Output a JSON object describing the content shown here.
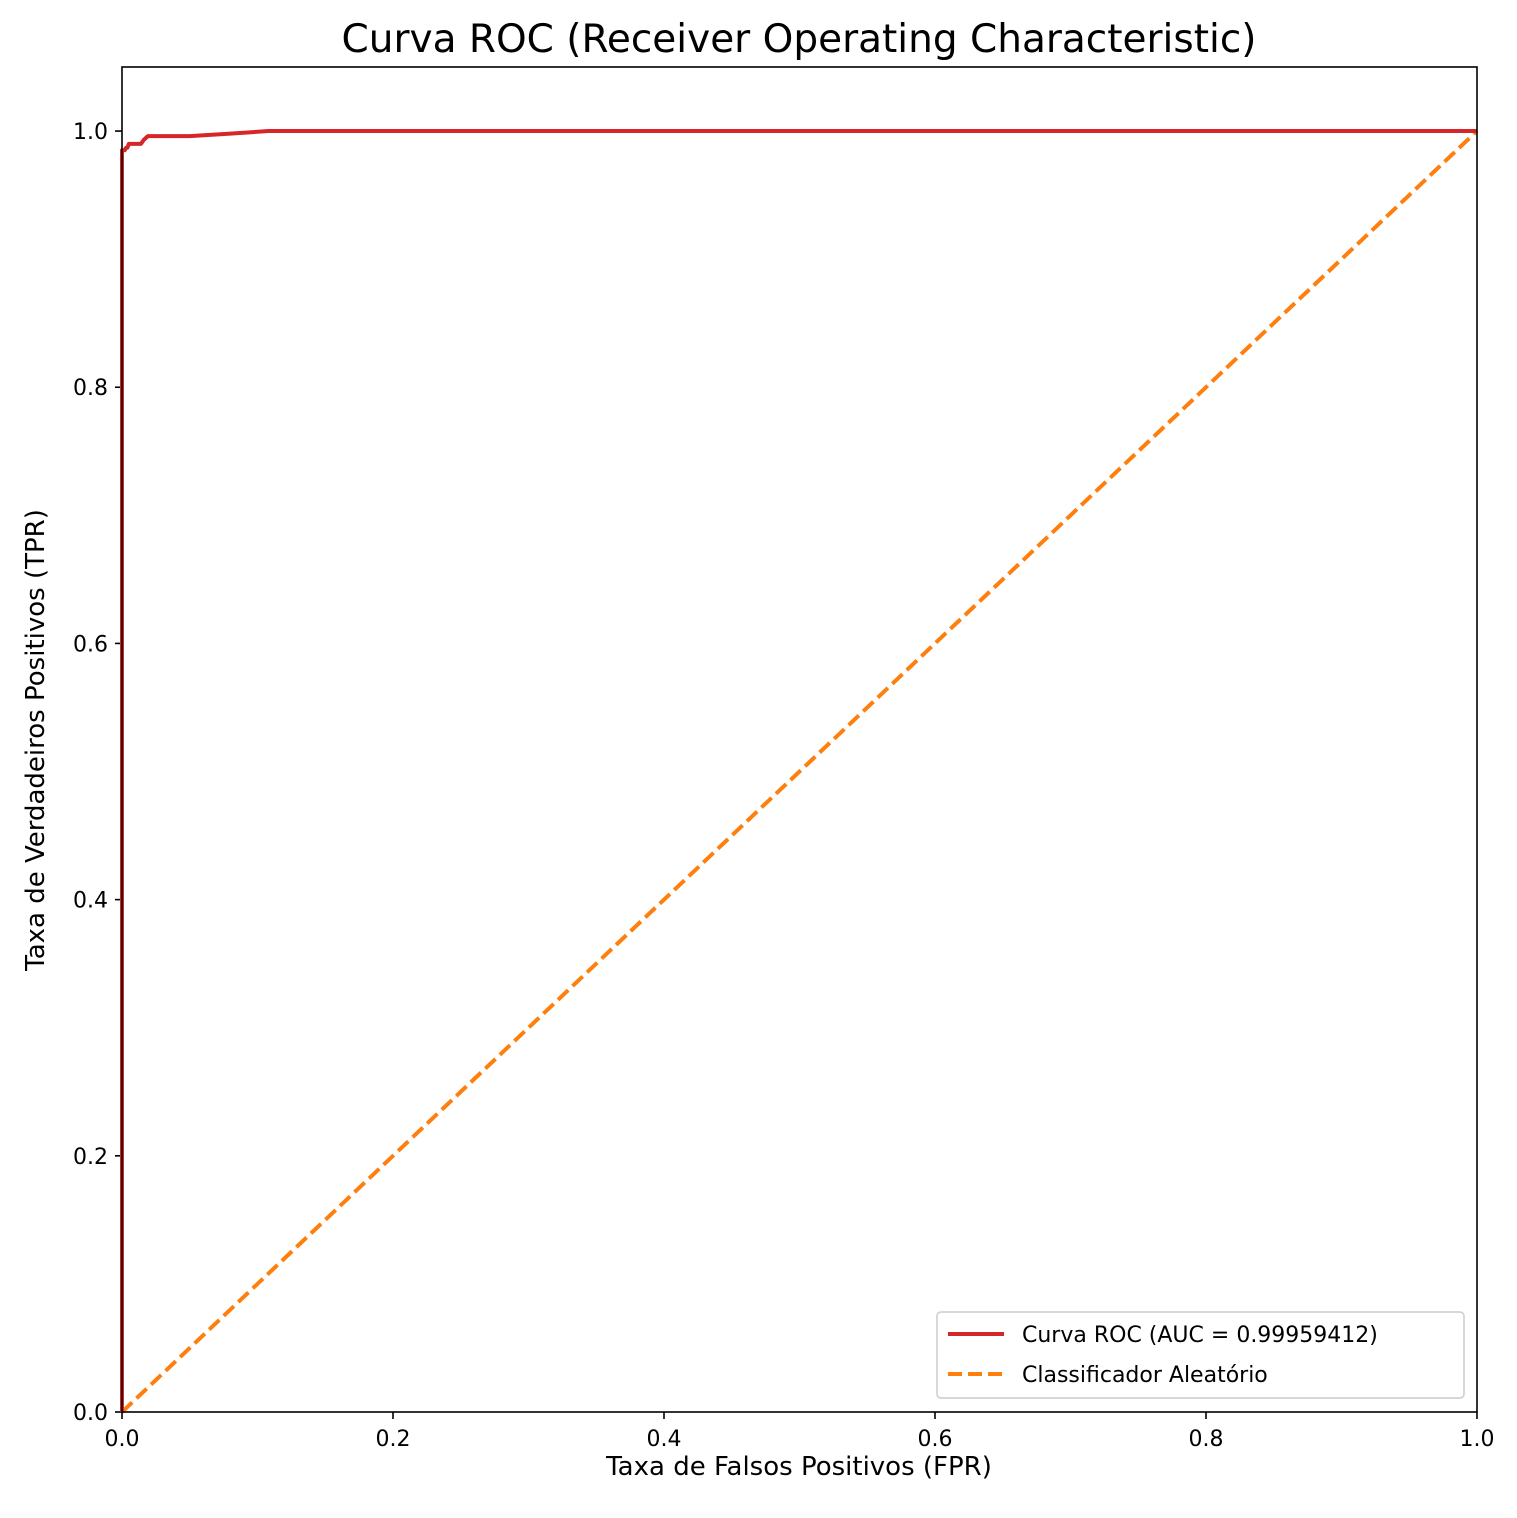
{
  "chart_data": {
    "type": "line",
    "title": "Curva ROC (Receiver Operating Characteristic)",
    "xlabel": "Taxa de Falsos Positivos (FPR)",
    "ylabel": "Taxa de Verdadeiros Positivos (TPR)",
    "xlim": [
      0.0,
      1.0
    ],
    "ylim": [
      0.0,
      1.05
    ],
    "x_ticks": [
      "0.0",
      "0.2",
      "0.4",
      "0.6",
      "0.8",
      "1.0"
    ],
    "y_ticks": [
      "0.0",
      "0.2",
      "0.4",
      "0.6",
      "0.8",
      "1.0"
    ],
    "x_tick_values": [
      0.0,
      0.2,
      0.4,
      0.6,
      0.8,
      1.0
    ],
    "y_tick_values": [
      0.0,
      0.2,
      0.4,
      0.6,
      0.8,
      1.0
    ],
    "grid": false,
    "legend_position": "lower right",
    "series": [
      {
        "name": "Curva ROC (AUC = 0.99959412)",
        "color": "#d62728",
        "style": "solid",
        "x": [
          0.0,
          0.0,
          0.002,
          0.003,
          0.004,
          0.005,
          0.008,
          0.014,
          0.016,
          0.019,
          0.03,
          0.05,
          0.08,
          0.108,
          0.2,
          0.5,
          1.0
        ],
        "y": [
          0.0,
          0.985,
          0.985,
          0.987,
          0.987,
          0.99,
          0.99,
          0.99,
          0.993,
          0.996,
          0.996,
          0.996,
          0.998,
          1.0,
          1.0,
          1.0,
          1.0
        ]
      },
      {
        "name": "Classificador Aleatório",
        "color": "#ff7f0e",
        "style": "dashed",
        "x": [
          0.0,
          1.0
        ],
        "y": [
          0.0,
          1.0
        ]
      }
    ]
  }
}
